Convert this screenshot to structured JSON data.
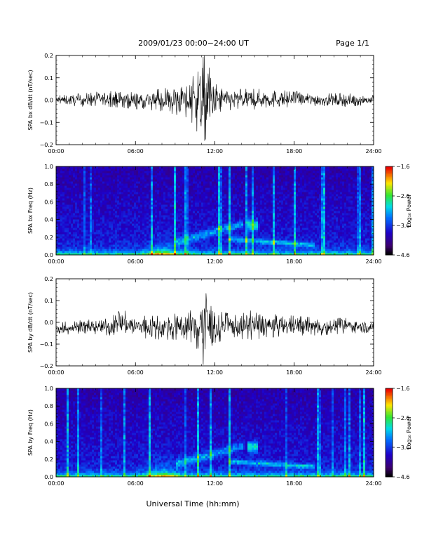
{
  "header": {
    "title": "2009/01/23  00:00−24:00 UT",
    "page_label": "Page 1/1"
  },
  "footer": {
    "xlabel": "Universal Time (hh:mm)"
  },
  "colorbar": {
    "label": "Log₁₀ Power",
    "ticks": [
      "−1.6",
      "−2.6",
      "−3.6",
      "−4.6"
    ]
  },
  "chart_data": [
    {
      "type": "line",
      "ylabel": "SPA bx dB/dt (nT/sec)",
      "xlim": [
        0,
        24
      ],
      "ylim": [
        -0.2,
        0.2
      ],
      "xticks": [
        "00:00",
        "06:00",
        "12:00",
        "18:00",
        "24:00"
      ],
      "yticks": [
        "0.2",
        "0.1",
        "0.0",
        "−0.1",
        "−0.2"
      ],
      "series": [
        {
          "x": [
            0,
            2,
            4,
            6,
            8,
            10,
            10.5,
            11,
            11.5,
            12,
            13,
            14,
            16,
            18,
            20,
            22,
            24
          ],
          "y_max": [
            0.02,
            0.03,
            0.04,
            0.04,
            0.05,
            0.08,
            0.12,
            0.2,
            0.2,
            0.08,
            0.05,
            0.05,
            0.05,
            0.04,
            0.03,
            0.03,
            0.02
          ],
          "y_min": [
            -0.02,
            -0.03,
            -0.03,
            -0.04,
            -0.05,
            -0.08,
            -0.12,
            -0.2,
            -0.2,
            -0.08,
            -0.05,
            -0.05,
            -0.04,
            -0.03,
            -0.03,
            -0.03,
            -0.02
          ]
        }
      ]
    },
    {
      "type": "heatmap",
      "ylabel": "SPA bx Freq (Hz)",
      "xlim": [
        0,
        24
      ],
      "ylim": [
        0,
        1.0
      ],
      "xticks": [
        "00:00",
        "06:00",
        "12:00",
        "18:00",
        "24:00"
      ],
      "yticks": [
        "1.0",
        "0.8",
        "0.6",
        "0.4",
        "0.2",
        "0.0"
      ],
      "zlim": [
        -4.6,
        -1.6
      ],
      "zlabel": "Log₁₀ Power"
    },
    {
      "type": "line",
      "ylabel": "SPA by dB/dt (nT/sec)",
      "xlim": [
        0,
        24
      ],
      "ylim": [
        -0.2,
        0.2
      ],
      "xticks": [
        "00:00",
        "06:00",
        "12:00",
        "18:00",
        "24:00"
      ],
      "yticks": [
        "0.2",
        "0.1",
        "0.0",
        "−0.1",
        "−0.2"
      ],
      "series": [
        {
          "x": [
            0,
            2,
            4,
            5,
            6,
            8,
            10,
            10.5,
            11,
            11.5,
            12,
            13,
            14,
            15,
            16,
            18,
            20,
            22,
            24
          ],
          "y_max": [
            0.0,
            0.01,
            0.02,
            0.06,
            0.03,
            0.03,
            0.05,
            0.1,
            0.2,
            0.15,
            0.06,
            0.04,
            0.04,
            0.06,
            0.04,
            0.03,
            0.02,
            0.02,
            0.0
          ],
          "y_min": [
            -0.06,
            -0.05,
            -0.06,
            -0.06,
            -0.07,
            -0.08,
            -0.08,
            -0.15,
            -0.2,
            -0.18,
            -0.1,
            -0.07,
            -0.08,
            -0.08,
            -0.07,
            -0.06,
            -0.06,
            -0.05,
            -0.05
          ]
        }
      ]
    },
    {
      "type": "heatmap",
      "ylabel": "SPA by Freq (Hz)",
      "xlim": [
        0,
        24
      ],
      "ylim": [
        0,
        1.0
      ],
      "xticks": [
        "00:00",
        "06:00",
        "12:00",
        "18:00",
        "24:00"
      ],
      "yticks": [
        "1.0",
        "0.8",
        "0.6",
        "0.4",
        "0.2",
        "0.0"
      ],
      "zlim": [
        -4.6,
        -1.6
      ],
      "zlabel": "Log₁₀ Power"
    }
  ]
}
